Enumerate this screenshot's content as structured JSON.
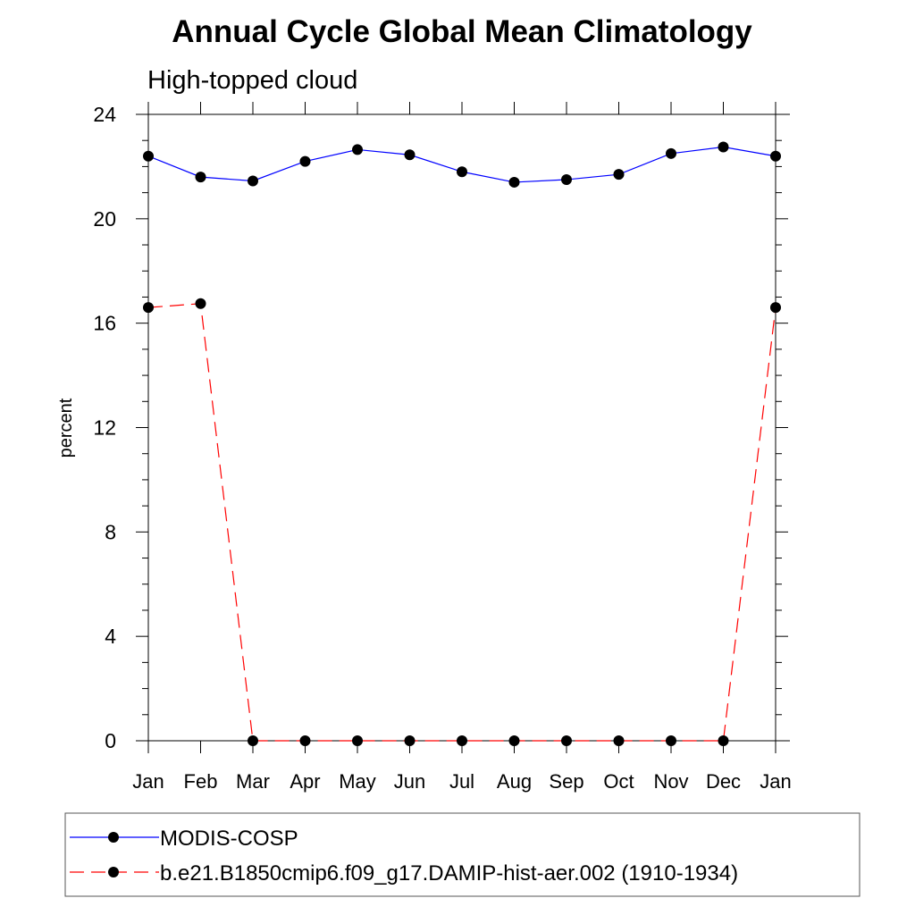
{
  "chart_data": {
    "type": "line",
    "title": "Annual Cycle Global Mean Climatology",
    "subtitle": "High-topped cloud",
    "xlabel": "",
    "ylabel": "percent",
    "categories": [
      "Jan",
      "Feb",
      "Mar",
      "Apr",
      "May",
      "Jun",
      "Jul",
      "Aug",
      "Sep",
      "Oct",
      "Nov",
      "Dec",
      "Jan"
    ],
    "ylim": [
      0,
      24
    ],
    "yticks": [
      "0",
      "4",
      "8",
      "12",
      "16",
      "20",
      "24"
    ],
    "grid": false,
    "legend_position": "bottom",
    "series": [
      {
        "name": "MODIS-COSP",
        "color": "#0000ff",
        "line_style": "solid",
        "marker": "filled-circle",
        "values": [
          22.4,
          21.6,
          21.45,
          22.2,
          22.65,
          22.45,
          21.8,
          21.4,
          21.5,
          21.7,
          22.5,
          22.75,
          22.4
        ]
      },
      {
        "name": "b.e21.B1850cmip6.f09_g17.DAMIP-hist-aer.002 (1910-1934)",
        "color": "#ff0000",
        "line_style": "dashed",
        "marker": "filled-circle",
        "values": [
          16.6,
          16.75,
          0,
          0,
          0,
          0,
          0,
          0,
          0,
          0,
          0,
          0,
          16.6
        ]
      }
    ]
  }
}
